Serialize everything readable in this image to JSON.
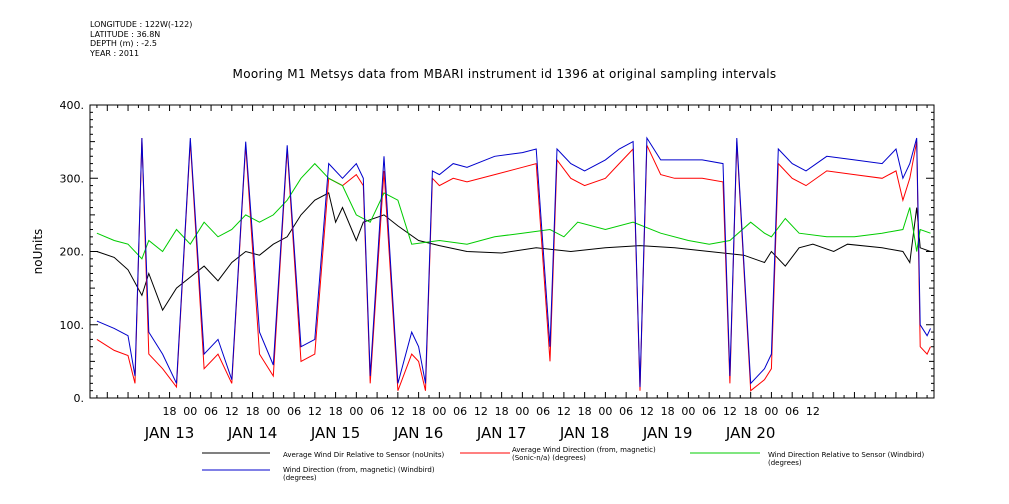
{
  "metadata": {
    "lines": [
      "LONGITUDE : 122W(-122)",
      "LATITUDE : 36.8N",
      "DEPTH (m) : -2.5",
      "YEAR : 2011"
    ]
  },
  "chart_data": {
    "type": "line",
    "title": "Mooring M1 Metsys data from MBARI instrument id 1396 at original sampling intervals",
    "ylabel": "noUnits",
    "xlabel": "",
    "ylim": [
      0,
      400
    ],
    "xlim_hours": [
      -29,
      215
    ],
    "y_ticks": [
      0,
      100,
      200,
      300,
      400
    ],
    "y_tick_labels": [
      "0.",
      "100.",
      "200.",
      "300.",
      "400."
    ],
    "hour_tick_labels": [
      "18",
      "00",
      "06",
      "12",
      "18",
      "00",
      "06",
      "12",
      "18",
      "00",
      "06",
      "12",
      "18",
      "00",
      "06",
      "12",
      "18",
      "00",
      "06",
      "12",
      "18",
      "00",
      "06",
      "12",
      "18",
      "00",
      "06",
      "12",
      "18",
      "00",
      "06",
      "12"
    ],
    "day_labels": [
      "JAN 13",
      "JAN 14",
      "JAN 15",
      "JAN 16",
      "JAN 17",
      "JAN 18",
      "JAN 19",
      "JAN 20"
    ],
    "grid": false,
    "series": [
      {
        "name": "Average Wind Dir Relative to Sensor (noUnits)",
        "color": "#000000",
        "values": [
          [
            -27,
            200
          ],
          [
            -22,
            192
          ],
          [
            -18,
            175
          ],
          [
            -14,
            140
          ],
          [
            -12,
            170
          ],
          [
            -8,
            120
          ],
          [
            -4,
            150
          ],
          [
            0,
            165
          ],
          [
            4,
            180
          ],
          [
            8,
            160
          ],
          [
            12,
            185
          ],
          [
            16,
            200
          ],
          [
            20,
            195
          ],
          [
            24,
            210
          ],
          [
            28,
            220
          ],
          [
            32,
            250
          ],
          [
            36,
            270
          ],
          [
            40,
            280
          ],
          [
            42,
            240
          ],
          [
            44,
            260
          ],
          [
            48,
            215
          ],
          [
            50,
            240
          ],
          [
            56,
            250
          ],
          [
            60,
            235
          ],
          [
            66,
            215
          ],
          [
            72,
            208
          ],
          [
            80,
            200
          ],
          [
            90,
            198
          ],
          [
            100,
            205
          ],
          [
            110,
            200
          ],
          [
            120,
            205
          ],
          [
            130,
            208
          ],
          [
            140,
            205
          ],
          [
            150,
            200
          ],
          [
            160,
            195
          ],
          [
            166,
            185
          ],
          [
            168,
            200
          ],
          [
            172,
            180
          ],
          [
            176,
            205
          ],
          [
            180,
            210
          ],
          [
            186,
            200
          ],
          [
            190,
            210
          ],
          [
            200,
            205
          ],
          [
            206,
            200
          ],
          [
            208,
            185
          ],
          [
            210,
            260
          ],
          [
            211,
            205
          ],
          [
            214,
            200
          ]
        ]
      },
      {
        "name": "Average Wind Direction (from, magnetic) (Sonic-n/a) (degrees)",
        "color": "#ff0000",
        "values": [
          [
            -27,
            80
          ],
          [
            -22,
            65
          ],
          [
            -18,
            58
          ],
          [
            -16,
            20
          ],
          [
            -14,
            355
          ],
          [
            -12,
            60
          ],
          [
            -8,
            40
          ],
          [
            -4,
            15
          ],
          [
            0,
            350
          ],
          [
            4,
            40
          ],
          [
            8,
            60
          ],
          [
            12,
            20
          ],
          [
            16,
            345
          ],
          [
            20,
            60
          ],
          [
            24,
            30
          ],
          [
            28,
            340
          ],
          [
            32,
            50
          ],
          [
            36,
            60
          ],
          [
            40,
            300
          ],
          [
            44,
            290
          ],
          [
            48,
            305
          ],
          [
            50,
            290
          ],
          [
            52,
            20
          ],
          [
            56,
            310
          ],
          [
            60,
            10
          ],
          [
            64,
            60
          ],
          [
            66,
            50
          ],
          [
            68,
            10
          ],
          [
            70,
            300
          ],
          [
            72,
            290
          ],
          [
            76,
            300
          ],
          [
            80,
            295
          ],
          [
            88,
            305
          ],
          [
            96,
            315
          ],
          [
            100,
            320
          ],
          [
            104,
            50
          ],
          [
            106,
            325
          ],
          [
            110,
            300
          ],
          [
            114,
            290
          ],
          [
            120,
            300
          ],
          [
            124,
            320
          ],
          [
            128,
            340
          ],
          [
            130,
            10
          ],
          [
            132,
            345
          ],
          [
            136,
            305
          ],
          [
            140,
            300
          ],
          [
            148,
            300
          ],
          [
            154,
            295
          ],
          [
            156,
            20
          ],
          [
            158,
            350
          ],
          [
            162,
            10
          ],
          [
            166,
            25
          ],
          [
            168,
            40
          ],
          [
            170,
            320
          ],
          [
            174,
            300
          ],
          [
            178,
            290
          ],
          [
            184,
            310
          ],
          [
            192,
            305
          ],
          [
            200,
            300
          ],
          [
            204,
            310
          ],
          [
            206,
            270
          ],
          [
            208,
            300
          ],
          [
            210,
            350
          ],
          [
            211,
            70
          ],
          [
            213,
            60
          ],
          [
            214,
            70
          ]
        ]
      },
      {
        "name": "Wind Direction Relative to Sensor (Windbird) (degrees)",
        "color": "#00cc00",
        "values": [
          [
            -27,
            225
          ],
          [
            -22,
            215
          ],
          [
            -18,
            210
          ],
          [
            -14,
            190
          ],
          [
            -12,
            215
          ],
          [
            -8,
            200
          ],
          [
            -4,
            230
          ],
          [
            0,
            210
          ],
          [
            4,
            240
          ],
          [
            8,
            220
          ],
          [
            12,
            230
          ],
          [
            16,
            250
          ],
          [
            20,
            240
          ],
          [
            24,
            250
          ],
          [
            28,
            270
          ],
          [
            32,
            300
          ],
          [
            36,
            320
          ],
          [
            40,
            300
          ],
          [
            44,
            290
          ],
          [
            48,
            250
          ],
          [
            52,
            240
          ],
          [
            56,
            280
          ],
          [
            60,
            270
          ],
          [
            64,
            210
          ],
          [
            72,
            215
          ],
          [
            80,
            210
          ],
          [
            88,
            220
          ],
          [
            96,
            225
          ],
          [
            104,
            230
          ],
          [
            108,
            220
          ],
          [
            112,
            240
          ],
          [
            120,
            230
          ],
          [
            128,
            240
          ],
          [
            136,
            225
          ],
          [
            144,
            215
          ],
          [
            150,
            210
          ],
          [
            156,
            215
          ],
          [
            162,
            240
          ],
          [
            166,
            225
          ],
          [
            168,
            220
          ],
          [
            172,
            245
          ],
          [
            176,
            225
          ],
          [
            184,
            220
          ],
          [
            192,
            220
          ],
          [
            200,
            225
          ],
          [
            206,
            230
          ],
          [
            208,
            260
          ],
          [
            210,
            200
          ],
          [
            211,
            230
          ],
          [
            214,
            225
          ]
        ]
      },
      {
        "name": "Wind Direction (from, magnetic) (Windbird) (degrees)",
        "color": "#0000cc",
        "values": [
          [
            -27,
            105
          ],
          [
            -22,
            95
          ],
          [
            -18,
            85
          ],
          [
            -16,
            30
          ],
          [
            -14,
            355
          ],
          [
            -12,
            90
          ],
          [
            -8,
            60
          ],
          [
            -4,
            20
          ],
          [
            0,
            355
          ],
          [
            4,
            60
          ],
          [
            8,
            80
          ],
          [
            12,
            25
          ],
          [
            16,
            350
          ],
          [
            20,
            90
          ],
          [
            24,
            45
          ],
          [
            28,
            345
          ],
          [
            32,
            70
          ],
          [
            36,
            80
          ],
          [
            40,
            320
          ],
          [
            44,
            300
          ],
          [
            48,
            320
          ],
          [
            50,
            300
          ],
          [
            52,
            30
          ],
          [
            56,
            330
          ],
          [
            60,
            20
          ],
          [
            64,
            90
          ],
          [
            66,
            70
          ],
          [
            68,
            20
          ],
          [
            70,
            310
          ],
          [
            72,
            305
          ],
          [
            76,
            320
          ],
          [
            80,
            315
          ],
          [
            88,
            330
          ],
          [
            96,
            335
          ],
          [
            100,
            340
          ],
          [
            104,
            70
          ],
          [
            106,
            340
          ],
          [
            110,
            320
          ],
          [
            114,
            310
          ],
          [
            120,
            325
          ],
          [
            124,
            340
          ],
          [
            128,
            350
          ],
          [
            130,
            15
          ],
          [
            132,
            355
          ],
          [
            136,
            325
          ],
          [
            140,
            325
          ],
          [
            148,
            325
          ],
          [
            154,
            320
          ],
          [
            156,
            30
          ],
          [
            158,
            355
          ],
          [
            162,
            20
          ],
          [
            166,
            40
          ],
          [
            168,
            60
          ],
          [
            170,
            340
          ],
          [
            174,
            320
          ],
          [
            178,
            310
          ],
          [
            184,
            330
          ],
          [
            192,
            325
          ],
          [
            200,
            320
          ],
          [
            204,
            340
          ],
          [
            206,
            300
          ],
          [
            208,
            320
          ],
          [
            210,
            355
          ],
          [
            211,
            100
          ],
          [
            213,
            85
          ],
          [
            214,
            95
          ]
        ]
      }
    ],
    "legend_placement": "bottom"
  }
}
